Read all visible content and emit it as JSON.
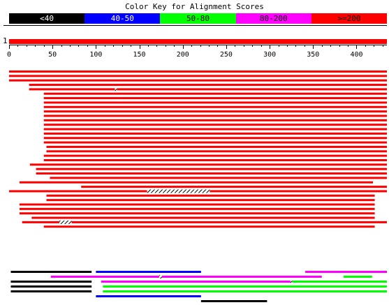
{
  "title": "Color Key for Alignment Scores",
  "color_key": [
    {
      "label": "<40",
      "color": "#000000",
      "text_color": "#ffffff"
    },
    {
      "label": "40-50",
      "color": "#0000ff",
      "text_color": "#ffffff"
    },
    {
      "label": "50-80",
      "color": "#00ff00",
      "text_color": "#000000"
    },
    {
      "label": "80-200",
      "color": "#ff00ff",
      "text_color": "#000000"
    },
    {
      "label": ">=200",
      "color": "#ff0000",
      "text_color": "#000000"
    }
  ],
  "query": {
    "number": "1",
    "length": 435,
    "ticks": [
      0,
      50,
      100,
      150,
      200,
      250,
      300,
      350,
      400
    ],
    "minor_tick_step": 10
  },
  "hits": [
    {
      "segments": [
        {
          "start": 0,
          "end": 435,
          "color": "#ff0000"
        }
      ]
    },
    {
      "segments": [
        {
          "start": 0,
          "end": 435,
          "color": "#ff0000"
        }
      ]
    },
    {
      "segments": [
        {
          "start": 0,
          "end": 435,
          "color": "#ff0000"
        }
      ]
    },
    {
      "segments": [
        {
          "start": 23,
          "end": 435,
          "color": "#ff0000"
        }
      ]
    },
    {
      "segments": [
        {
          "start": 23,
          "end": 122,
          "color": "#ff0000"
        },
        {
          "start": 124,
          "end": 435,
          "color": "#ff0000"
        }
      ],
      "gaps": [
        {
          "start": 122,
          "end": 124
        }
      ]
    },
    {
      "segments": [
        {
          "start": 40,
          "end": 435,
          "color": "#ff0000"
        }
      ]
    },
    {
      "segments": [
        {
          "start": 40,
          "end": 435,
          "color": "#ff0000"
        }
      ]
    },
    {
      "segments": [
        {
          "start": 40,
          "end": 435,
          "color": "#ff0000"
        }
      ]
    },
    {
      "segments": [
        {
          "start": 40,
          "end": 435,
          "color": "#ff0000"
        }
      ]
    },
    {
      "segments": [
        {
          "start": 40,
          "end": 435,
          "color": "#ff0000"
        }
      ]
    },
    {
      "segments": [
        {
          "start": 40,
          "end": 435,
          "color": "#ff0000"
        }
      ]
    },
    {
      "segments": [
        {
          "start": 40,
          "end": 435,
          "color": "#ff0000"
        }
      ]
    },
    {
      "segments": [
        {
          "start": 40,
          "end": 435,
          "color": "#ff0000"
        }
      ]
    },
    {
      "segments": [
        {
          "start": 40,
          "end": 435,
          "color": "#ff0000"
        }
      ]
    },
    {
      "segments": [
        {
          "start": 40,
          "end": 435,
          "color": "#ff0000"
        }
      ]
    },
    {
      "segments": [
        {
          "start": 40,
          "end": 435,
          "color": "#ff0000"
        }
      ]
    },
    {
      "segments": [
        {
          "start": 40,
          "end": 435,
          "color": "#ff0000"
        }
      ]
    },
    {
      "segments": [
        {
          "start": 43,
          "end": 435,
          "color": "#ff0000"
        }
      ]
    },
    {
      "segments": [
        {
          "start": 43,
          "end": 435,
          "color": "#ff0000"
        }
      ]
    },
    {
      "segments": [
        {
          "start": 40,
          "end": 435,
          "color": "#ff0000"
        }
      ]
    },
    {
      "segments": [
        {
          "start": 40,
          "end": 435,
          "color": "#ff0000"
        }
      ]
    },
    {
      "segments": [
        {
          "start": 24,
          "end": 435,
          "color": "#ff0000"
        }
      ]
    },
    {
      "segments": [
        {
          "start": 31,
          "end": 435,
          "color": "#ff0000"
        }
      ]
    },
    {
      "segments": [
        {
          "start": 31,
          "end": 435,
          "color": "#ff0000"
        }
      ]
    },
    {
      "segments": [
        {
          "start": 47,
          "end": 435,
          "color": "#ff0000"
        }
      ]
    },
    {
      "segments": [
        {
          "start": 12,
          "end": 419,
          "color": "#ff0000"
        }
      ]
    },
    {
      "segments": [
        {
          "start": 83,
          "end": 435,
          "color": "#ff0000"
        }
      ]
    },
    {
      "segments": [
        {
          "start": 0,
          "end": 159,
          "color": "#ff0000"
        },
        {
          "start": 231,
          "end": 435,
          "color": "#ff0000"
        }
      ],
      "gaps": [
        {
          "start": 159,
          "end": 231
        }
      ]
    },
    {
      "segments": [
        {
          "start": 43,
          "end": 421,
          "color": "#ff0000"
        }
      ]
    },
    {
      "segments": [
        {
          "start": 43,
          "end": 421,
          "color": "#ff0000"
        }
      ]
    },
    {
      "segments": [
        {
          "start": 12,
          "end": 421,
          "color": "#ff0000"
        }
      ]
    },
    {
      "segments": [
        {
          "start": 12,
          "end": 421,
          "color": "#ff0000"
        }
      ]
    },
    {
      "segments": [
        {
          "start": 12,
          "end": 421,
          "color": "#ff0000"
        }
      ]
    },
    {
      "segments": [
        {
          "start": 26,
          "end": 421,
          "color": "#ff0000"
        }
      ]
    },
    {
      "segments": [
        {
          "start": 15,
          "end": 58,
          "color": "#ff0000"
        },
        {
          "start": 72,
          "end": 435,
          "color": "#ff0000"
        }
      ],
      "gaps": [
        {
          "start": 58,
          "end": 72
        }
      ]
    },
    {
      "segments": [
        {
          "start": 40,
          "end": 421,
          "color": "#ff0000"
        }
      ]
    },
    {
      "segments": [
        {
          "start": 2,
          "end": 95,
          "color": "#000000"
        },
        {
          "start": 100,
          "end": 221,
          "color": "#0000ff"
        },
        {
          "start": 341,
          "end": 435,
          "color": "#ff00ff"
        }
      ]
    },
    {
      "segments": [
        {
          "start": 48,
          "end": 173,
          "color": "#ff00ff"
        },
        {
          "start": 176,
          "end": 360,
          "color": "#ff00ff"
        },
        {
          "start": 385,
          "end": 418,
          "color": "#00ff00"
        }
      ],
      "gaps": [
        {
          "start": 173,
          "end": 176
        }
      ]
    },
    {
      "segments": [
        {
          "start": 2,
          "end": 95,
          "color": "#000000"
        },
        {
          "start": 106,
          "end": 324,
          "color": "#ff00ff"
        },
        {
          "start": 326,
          "end": 435,
          "color": "#00ff00"
        }
      ],
      "gaps": [
        {
          "start": 324,
          "end": 326
        }
      ]
    },
    {
      "segments": [
        {
          "start": 2,
          "end": 95,
          "color": "#000000"
        },
        {
          "start": 108,
          "end": 435,
          "color": "#00ff00"
        }
      ]
    },
    {
      "segments": [
        {
          "start": 2,
          "end": 95,
          "color": "#000000"
        },
        {
          "start": 108,
          "end": 435,
          "color": "#00ff00"
        }
      ]
    },
    {
      "segments": [
        {
          "start": 100,
          "end": 221,
          "color": "#0000ff"
        }
      ]
    },
    {
      "segments": [
        {
          "start": 221,
          "end": 297,
          "color": "#000000"
        }
      ]
    }
  ]
}
